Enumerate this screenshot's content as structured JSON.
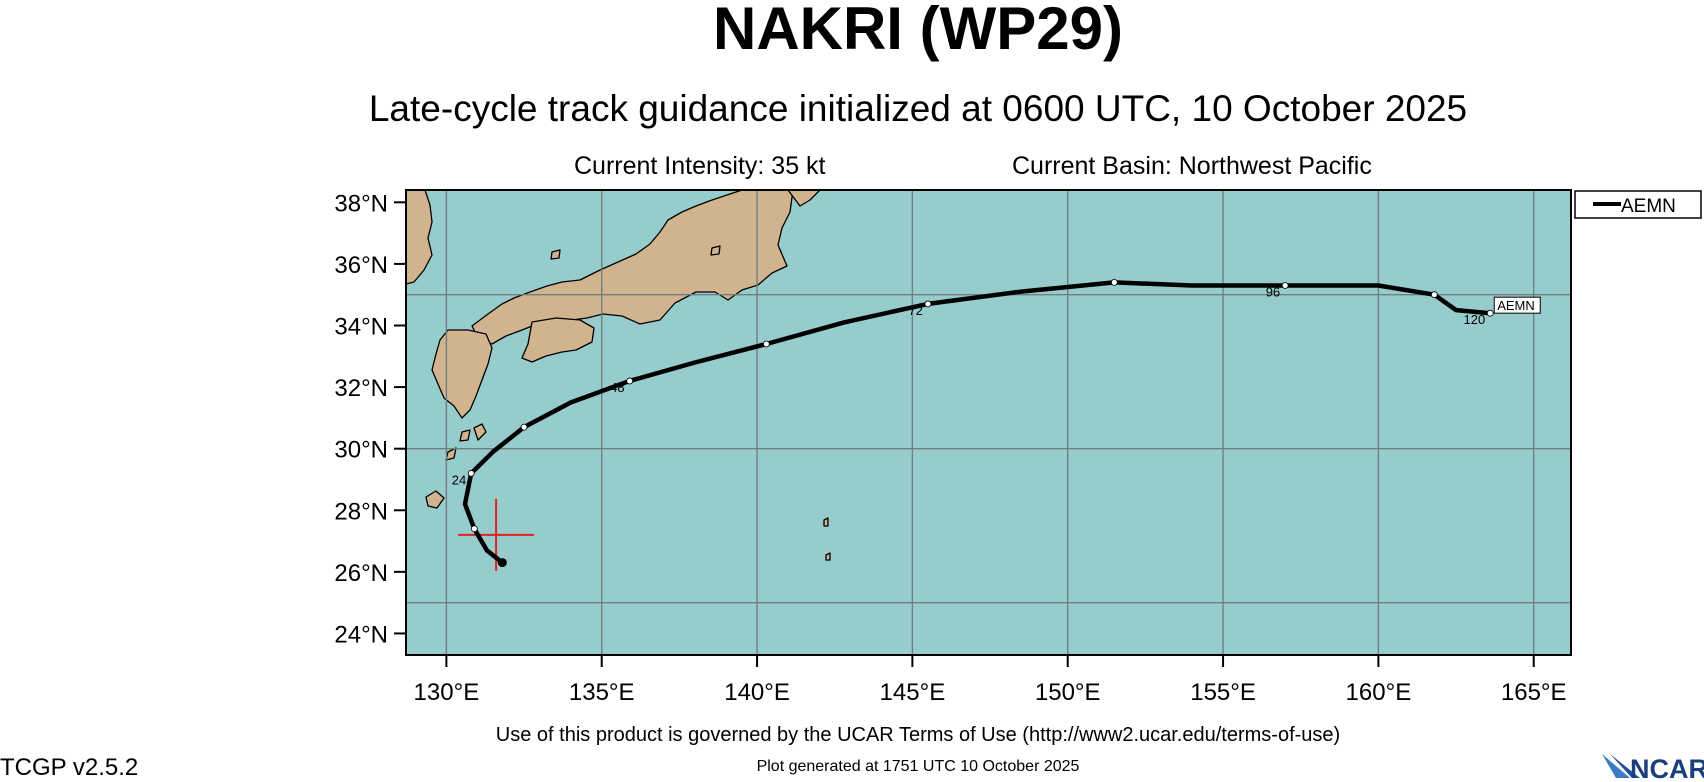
{
  "title": "NAKRI (WP29)",
  "subtitle": "Late-cycle track guidance initialized at 0600 UTC, 10 October 2025",
  "current_intensity": "Current Intensity: 35 kt",
  "current_basin": "Current Basin: Northwest Pacific",
  "terms": "Use of this product is governed by the UCAR Terms of Use (http://www2.ucar.edu/terms-of-use)",
  "generated": "Plot generated at 1751 UTC   10 October 2025",
  "version": "TCGP v2.5.2",
  "logo_text": "NCAR",
  "legend": {
    "label": "AEMN"
  },
  "colors": {
    "ocean": "#96cccc",
    "land": "#d1b38d",
    "grid": "#6f7f7f",
    "track": "#000000",
    "current_position": "#e02020"
  },
  "map": {
    "lon_range": [
      128.7,
      166.2
    ],
    "lat_range": [
      23.3,
      38.4
    ],
    "lon_ticks": [
      {
        "value": 130,
        "label": "130°E"
      },
      {
        "value": 135,
        "label": "135°E"
      },
      {
        "value": 140,
        "label": "140°E"
      },
      {
        "value": 145,
        "label": "145°E"
      },
      {
        "value": 150,
        "label": "150°E"
      },
      {
        "value": 155,
        "label": "155°E"
      },
      {
        "value": 160,
        "label": "160°E"
      },
      {
        "value": 165,
        "label": "165°E"
      }
    ],
    "lat_ticks": [
      {
        "value": 24,
        "label": "24°N"
      },
      {
        "value": 26,
        "label": "26°N"
      },
      {
        "value": 28,
        "label": "28°N"
      },
      {
        "value": 30,
        "label": "30°N"
      },
      {
        "value": 32,
        "label": "32°N"
      },
      {
        "value": 34,
        "label": "34°N"
      },
      {
        "value": 36,
        "label": "36°N"
      },
      {
        "value": 38,
        "label": "38°N"
      }
    ],
    "grid_lons": [
      130,
      135,
      140,
      145,
      150,
      155,
      160,
      165
    ],
    "grid_lats": [
      25,
      30,
      35
    ]
  },
  "chart_data": {
    "type": "line",
    "series": [
      {
        "name": "AEMN",
        "points": [
          {
            "lon": 131.8,
            "lat": 26.3
          },
          {
            "lon": 131.3,
            "lat": 26.7
          },
          {
            "lon": 130.9,
            "lat": 27.4
          },
          {
            "lon": 130.6,
            "lat": 28.2
          },
          {
            "lon": 130.8,
            "lat": 29.2
          },
          {
            "lon": 131.5,
            "lat": 29.9
          },
          {
            "lon": 132.5,
            "lat": 30.7
          },
          {
            "lon": 134.0,
            "lat": 31.5
          },
          {
            "lon": 135.9,
            "lat": 32.2
          },
          {
            "lon": 138.0,
            "lat": 32.8
          },
          {
            "lon": 140.3,
            "lat": 33.4
          },
          {
            "lon": 142.8,
            "lat": 34.1
          },
          {
            "lon": 145.5,
            "lat": 34.7
          },
          {
            "lon": 148.5,
            "lat": 35.1
          },
          {
            "lon": 151.5,
            "lat": 35.4
          },
          {
            "lon": 154.0,
            "lat": 35.3
          },
          {
            "lon": 157.0,
            "lat": 35.3
          },
          {
            "lon": 160.0,
            "lat": 35.3
          },
          {
            "lon": 161.8,
            "lat": 35.0
          },
          {
            "lon": 162.5,
            "lat": 34.5
          },
          {
            "lon": 163.6,
            "lat": 34.4
          }
        ],
        "markers": [
          {
            "lon": 131.8,
            "lat": 26.3,
            "label": ""
          },
          {
            "lon": 130.9,
            "lat": 27.4,
            "label": ""
          },
          {
            "lon": 130.8,
            "lat": 29.2,
            "label": "24"
          },
          {
            "lon": 132.5,
            "lat": 30.7,
            "label": ""
          },
          {
            "lon": 135.9,
            "lat": 32.2,
            "label": "48"
          },
          {
            "lon": 140.3,
            "lat": 33.4,
            "label": ""
          },
          {
            "lon": 145.5,
            "lat": 34.7,
            "label": "72"
          },
          {
            "lon": 151.5,
            "lat": 35.4,
            "label": ""
          },
          {
            "lon": 157.0,
            "lat": 35.3,
            "label": "96"
          },
          {
            "lon": 161.8,
            "lat": 35.0,
            "label": ""
          },
          {
            "lon": 163.6,
            "lat": 34.4,
            "label": "120"
          }
        ],
        "end_label": "AEMN"
      }
    ],
    "current_position": {
      "lon": 131.6,
      "lat": 27.2
    }
  }
}
